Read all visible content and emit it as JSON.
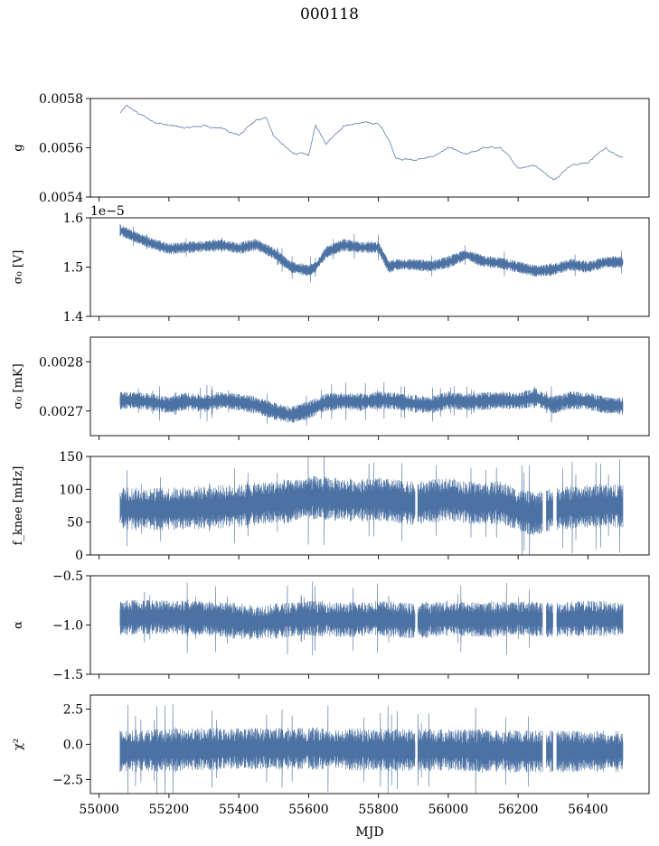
{
  "figure": {
    "title": "000118",
    "xlabel": "MJD",
    "line_color": "#4c72a4",
    "x_ticks": [
      55000,
      55200,
      55400,
      55600,
      55800,
      56000,
      56200,
      56400
    ],
    "xlim": [
      54975,
      56575
    ]
  },
  "chart_data": [
    {
      "type": "line",
      "ylabel": "g",
      "ylim": [
        0.0054,
        0.0058
      ],
      "y_ticks": [
        "0.0054",
        "0.0056",
        "0.0058"
      ],
      "y_tick_values": [
        0.0054,
        0.0056,
        0.0058
      ],
      "offset_text": "",
      "style": "thin",
      "x": [
        55060,
        55080,
        55100,
        55150,
        55200,
        55250,
        55300,
        55350,
        55400,
        55450,
        55480,
        55500,
        55550,
        55600,
        55620,
        55650,
        55700,
        55750,
        55800,
        55830,
        55850,
        55900,
        55950,
        56000,
        56050,
        56100,
        56150,
        56200,
        56250,
        56300,
        56350,
        56400,
        56450,
        56500
      ],
      "y": [
        0.00574,
        0.00577,
        0.00575,
        0.00571,
        0.00569,
        0.00568,
        0.00569,
        0.00568,
        0.00565,
        0.00571,
        0.00572,
        0.00565,
        0.00558,
        0.00557,
        0.00569,
        0.00562,
        0.00569,
        0.0057,
        0.0057,
        0.00563,
        0.00556,
        0.00555,
        0.00556,
        0.0056,
        0.00557,
        0.0056,
        0.0056,
        0.00552,
        0.00553,
        0.00547,
        0.00553,
        0.00554,
        0.0056,
        0.00556
      ]
    },
    {
      "type": "line",
      "ylabel": "σ₀ [V]",
      "ylim": [
        1.4,
        1.6
      ],
      "y_ticks": [
        "1.4",
        "1.5",
        "1.6"
      ],
      "y_tick_values": [
        1.4,
        1.5,
        1.6
      ],
      "offset_text": "1e−5",
      "style": "band",
      "x": [
        55060,
        55100,
        55150,
        55200,
        55250,
        55300,
        55350,
        55400,
        55450,
        55500,
        55550,
        55600,
        55620,
        55650,
        55700,
        55750,
        55800,
        55830,
        55850,
        55900,
        55950,
        56000,
        56050,
        56100,
        56150,
        56200,
        56250,
        56300,
        56350,
        56400,
        56450,
        56500
      ],
      "y": [
        1.575,
        1.562,
        1.548,
        1.537,
        1.54,
        1.542,
        1.545,
        1.538,
        1.546,
        1.528,
        1.5,
        1.493,
        1.5,
        1.53,
        1.545,
        1.54,
        1.54,
        1.5,
        1.505,
        1.505,
        1.502,
        1.51,
        1.525,
        1.512,
        1.508,
        1.5,
        1.492,
        1.495,
        1.505,
        1.5,
        1.51,
        1.51
      ],
      "spread": 0.008
    },
    {
      "type": "line",
      "ylabel": "σ₀ [mK]",
      "ylim": [
        0.00265,
        0.00285
      ],
      "y_ticks": [
        "0.0027",
        "0.0028"
      ],
      "y_tick_values": [
        0.0027,
        0.0028
      ],
      "offset_text": "",
      "style": "band",
      "x": [
        55060,
        55100,
        55150,
        55200,
        55250,
        55300,
        55350,
        55400,
        55450,
        55500,
        55550,
        55600,
        55650,
        55700,
        55750,
        55800,
        55850,
        55900,
        55950,
        56000,
        56050,
        56100,
        56150,
        56200,
        56250,
        56300,
        56350,
        56400,
        56450,
        56500
      ],
      "y": [
        0.002721,
        0.002722,
        0.002718,
        0.002712,
        0.00272,
        0.002715,
        0.002722,
        0.002718,
        0.002712,
        0.0027,
        0.002692,
        0.002702,
        0.002718,
        0.00272,
        0.002718,
        0.002722,
        0.00272,
        0.002715,
        0.002712,
        0.002722,
        0.002718,
        0.00272,
        0.002722,
        0.00272,
        0.002728,
        0.002712,
        0.002722,
        0.00272,
        0.002712,
        0.00271
      ],
      "spread": 1.2e-05
    },
    {
      "type": "line",
      "ylabel": "f_knee [mHz]",
      "ylim": [
        0,
        150
      ],
      "y_ticks": [
        "0",
        "50",
        "100",
        "150"
      ],
      "y_tick_values": [
        0,
        50,
        100,
        150
      ],
      "offset_text": "",
      "style": "band",
      "x": [
        55060,
        55100,
        55200,
        55300,
        55400,
        55450,
        55500,
        55550,
        55600,
        55650,
        55700,
        55750,
        55800,
        55850,
        55900,
        55950,
        56000,
        56050,
        56100,
        56150,
        56200,
        56250,
        56300,
        56350,
        56400,
        56450,
        56500
      ],
      "y": [
        72,
        70,
        70,
        72,
        75,
        78,
        80,
        82,
        88,
        86,
        84,
        83,
        85,
        82,
        78,
        82,
        85,
        80,
        78,
        80,
        68,
        62,
        70,
        72,
        74,
        76,
        74
      ],
      "spread": 22,
      "gaps": [
        [
          55905,
          55912
        ],
        [
          56270,
          56280
        ],
        [
          56300,
          56310
        ]
      ]
    },
    {
      "type": "line",
      "ylabel": "α",
      "ylim": [
        -1.5,
        -0.5
      ],
      "y_ticks": [
        "−1.5",
        "−1.0",
        "−0.5"
      ],
      "y_tick_values": [
        -1.5,
        -1.0,
        -0.5
      ],
      "offset_text": "",
      "style": "band",
      "x": [
        55060,
        55100,
        55200,
        55300,
        55400,
        55450,
        55500,
        55600,
        55700,
        55800,
        55900,
        56000,
        56100,
        56200,
        56300,
        56400,
        56500
      ],
      "y": [
        -0.93,
        -0.92,
        -0.92,
        -0.93,
        -0.96,
        -0.98,
        -0.96,
        -0.93,
        -0.95,
        -0.93,
        -0.96,
        -0.93,
        -0.95,
        -0.93,
        -0.95,
        -0.93,
        -0.94
      ],
      "spread": 0.12,
      "gaps": [
        [
          55905,
          55912
        ],
        [
          56270,
          56280
        ],
        [
          56300,
          56310
        ]
      ]
    },
    {
      "type": "line",
      "ylabel": "χ²",
      "ylim": [
        -3.5,
        3.5
      ],
      "y_ticks": [
        "−2.5",
        "0.0",
        "2.5"
      ],
      "y_tick_values": [
        -2.5,
        0.0,
        2.5
      ],
      "offset_text": "",
      "style": "band",
      "x": [
        55060,
        55200,
        55400,
        55600,
        55800,
        56000,
        56200,
        56400,
        56500
      ],
      "y": [
        -0.5,
        -0.4,
        -0.3,
        -0.3,
        -0.4,
        -0.4,
        -0.5,
        -0.5,
        -0.5
      ],
      "spread": 1.0,
      "gaps": [
        [
          55905,
          55912
        ],
        [
          56270,
          56280
        ],
        [
          56300,
          56310
        ]
      ]
    }
  ]
}
